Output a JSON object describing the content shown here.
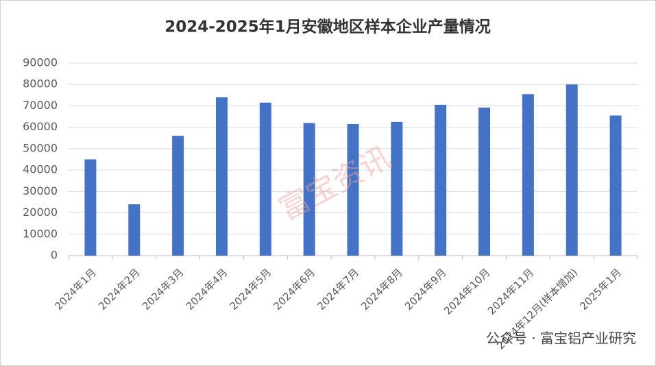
{
  "chart_data": {
    "type": "bar",
    "title": "2024-2025年1月安徽地区样本企业产量情况",
    "categories": [
      "2024年1月",
      "2024年2月",
      "2024年3月",
      "2024年4月",
      "2024年5月",
      "2024年6月",
      "2024年7月",
      "2024年8月",
      "2024年9月",
      "2024年10月",
      "2024年11月",
      "2024年12月(样本增加)",
      "2025年1月"
    ],
    "values": [
      45000,
      24000,
      56000,
      74000,
      71500,
      62000,
      61500,
      62500,
      70500,
      69200,
      75500,
      80000,
      65500
    ],
    "color": "#4472c4",
    "ylim": [
      0,
      90000
    ],
    "yticks": [
      0,
      10000,
      20000,
      30000,
      40000,
      50000,
      60000,
      70000,
      80000,
      90000
    ],
    "grid": true,
    "watermark": "富宝资讯",
    "source": "公众号 · 富宝铝产业研究"
  }
}
